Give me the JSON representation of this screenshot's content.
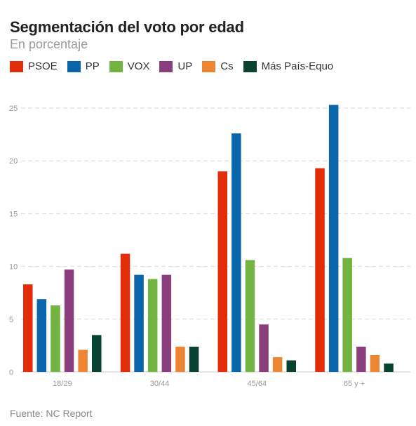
{
  "header": {
    "title": "Segmentación del voto por edad",
    "subtitle": "En porcentaje"
  },
  "footer": {
    "source": "Fuente: NC Report"
  },
  "chart_data": {
    "type": "bar",
    "title": "Segmentación del voto por edad",
    "subtitle": "En porcentaje",
    "xlabel": "",
    "ylabel": "",
    "ylim": [
      0,
      25
    ],
    "yticks": [
      0,
      5,
      10,
      15,
      20,
      25
    ],
    "grid": true,
    "legend_position": "top-left",
    "categories": [
      "18/29",
      "30/44",
      "45/64",
      "65 y +"
    ],
    "series": [
      {
        "name": "PSOE",
        "color": "#e32d0a",
        "values": [
          8.3,
          11.2,
          19.0,
          19.3
        ]
      },
      {
        "name": "PP",
        "color": "#0a66aa",
        "values": [
          6.9,
          9.2,
          22.6,
          25.3
        ]
      },
      {
        "name": "VOX",
        "color": "#72b342",
        "values": [
          6.3,
          8.8,
          10.6,
          10.8
        ]
      },
      {
        "name": "UP",
        "color": "#8a3f7c",
        "values": [
          9.7,
          9.2,
          4.5,
          2.4
        ]
      },
      {
        "name": "Cs",
        "color": "#ee8533",
        "values": [
          2.1,
          2.4,
          1.4,
          1.6
        ]
      },
      {
        "name": "Más País-Equo",
        "color": "#0a4232",
        "values": [
          3.5,
          2.4,
          1.1,
          0.8
        ]
      }
    ]
  }
}
